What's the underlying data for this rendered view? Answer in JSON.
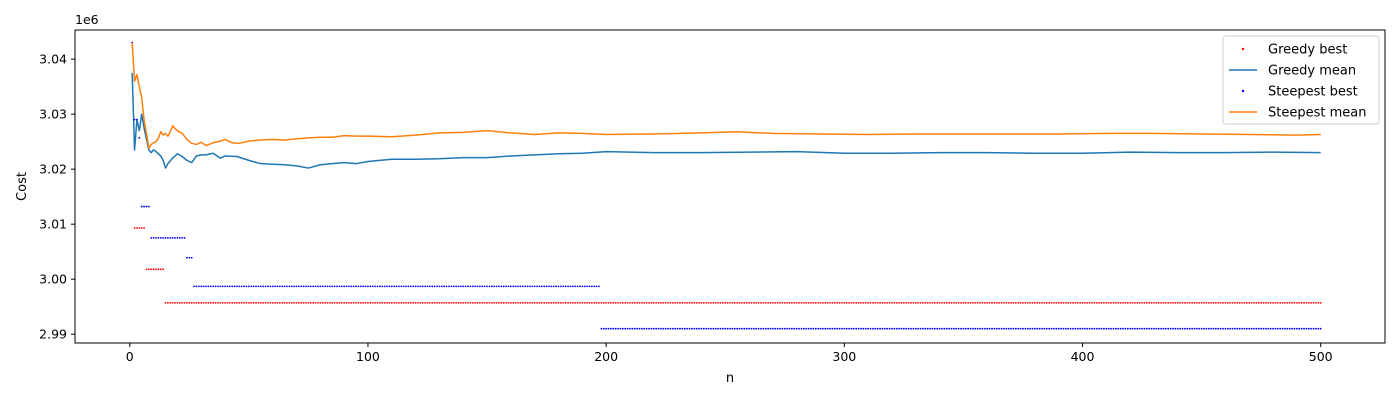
{
  "chart_data": {
    "type": "line",
    "title": "",
    "xlabel": "n",
    "ylabel": "Cost",
    "y_offset_label": "1e6",
    "y_scale": 1000000,
    "xlim": [
      -23,
      527
    ],
    "ylim": [
      2988400,
      3045300
    ],
    "x_ticks": [
      0,
      100,
      200,
      300,
      400,
      500
    ],
    "y_ticks": [
      2990000,
      3000000,
      3010000,
      3020000,
      3030000,
      3040000
    ],
    "y_tick_labels": [
      "2.99",
      "3.00",
      "3.01",
      "3.02",
      "3.03",
      "3.04"
    ],
    "grid": false,
    "legend_position": "top-right",
    "x_range": [
      1,
      500
    ],
    "series": [
      {
        "name": "Greedy best",
        "kind": "step-points",
        "color": "#ff0000",
        "steps": [
          {
            "from": 1,
            "to": 1,
            "y": 3043000
          },
          {
            "from": 2,
            "to": 6,
            "y": 3009300
          },
          {
            "from": 7,
            "to": 14,
            "y": 3001800
          },
          {
            "from": 15,
            "to": 500,
            "y": 2995700
          }
        ]
      },
      {
        "name": "Greedy mean",
        "kind": "line",
        "color": "#1f77b4",
        "points": [
          [
            1,
            3037500
          ],
          [
            2,
            3023500
          ],
          [
            3,
            3029000
          ],
          [
            4,
            3027000
          ],
          [
            5,
            3030000
          ],
          [
            6,
            3027500
          ],
          [
            7,
            3025500
          ],
          [
            8,
            3023500
          ],
          [
            9,
            3023000
          ],
          [
            10,
            3023500
          ],
          [
            11,
            3023200
          ],
          [
            12,
            3022800
          ],
          [
            13,
            3022400
          ],
          [
            14,
            3021600
          ],
          [
            15,
            3020200
          ],
          [
            16,
            3021000
          ],
          [
            18,
            3022000
          ],
          [
            20,
            3022800
          ],
          [
            22,
            3022300
          ],
          [
            24,
            3021600
          ],
          [
            26,
            3021200
          ],
          [
            28,
            3022400
          ],
          [
            30,
            3022600
          ],
          [
            32,
            3022600
          ],
          [
            35,
            3022900
          ],
          [
            38,
            3022000
          ],
          [
            40,
            3022400
          ],
          [
            45,
            3022300
          ],
          [
            50,
            3021600
          ],
          [
            55,
            3021000
          ],
          [
            60,
            3020900
          ],
          [
            65,
            3020800
          ],
          [
            70,
            3020600
          ],
          [
            75,
            3020200
          ],
          [
            80,
            3020800
          ],
          [
            85,
            3021000
          ],
          [
            90,
            3021200
          ],
          [
            95,
            3021000
          ],
          [
            100,
            3021400
          ],
          [
            110,
            3021800
          ],
          [
            120,
            3021800
          ],
          [
            130,
            3021900
          ],
          [
            140,
            3022100
          ],
          [
            150,
            3022100
          ],
          [
            160,
            3022400
          ],
          [
            170,
            3022600
          ],
          [
            180,
            3022800
          ],
          [
            190,
            3022900
          ],
          [
            200,
            3023200
          ],
          [
            220,
            3023000
          ],
          [
            240,
            3023000
          ],
          [
            260,
            3023100
          ],
          [
            280,
            3023200
          ],
          [
            300,
            3022900
          ],
          [
            320,
            3022900
          ],
          [
            340,
            3023000
          ],
          [
            360,
            3023000
          ],
          [
            380,
            3022900
          ],
          [
            400,
            3022900
          ],
          [
            420,
            3023100
          ],
          [
            440,
            3023000
          ],
          [
            460,
            3023000
          ],
          [
            480,
            3023100
          ],
          [
            500,
            3023000
          ]
        ]
      },
      {
        "name": "Steepest best",
        "kind": "step-points",
        "color": "#0000ff",
        "steps": [
          {
            "from": 1,
            "to": 1,
            "y": 3043000
          },
          {
            "from": 2,
            "to": 2,
            "y": 3029000
          },
          {
            "from": 3,
            "to": 3,
            "y": 3029000
          },
          {
            "from": 4,
            "to": 4,
            "y": 3025700
          },
          {
            "from": 5,
            "to": 8,
            "y": 3013200
          },
          {
            "from": 9,
            "to": 23,
            "y": 3007500
          },
          {
            "from": 24,
            "to": 26,
            "y": 3003900
          },
          {
            "from": 27,
            "to": 197,
            "y": 2998700
          },
          {
            "from": 198,
            "to": 500,
            "y": 2991000
          }
        ]
      },
      {
        "name": "Steepest mean",
        "kind": "line",
        "color": "#ff7f0e",
        "points": [
          [
            1,
            3043000
          ],
          [
            2,
            3036000
          ],
          [
            3,
            3037200
          ],
          [
            4,
            3035000
          ],
          [
            5,
            3033000
          ],
          [
            6,
            3029000
          ],
          [
            7,
            3026500
          ],
          [
            8,
            3023800
          ],
          [
            9,
            3024500
          ],
          [
            10,
            3024800
          ],
          [
            11,
            3025000
          ],
          [
            12,
            3025600
          ],
          [
            13,
            3026800
          ],
          [
            14,
            3026200
          ],
          [
            15,
            3026500
          ],
          [
            16,
            3026000
          ],
          [
            17,
            3026800
          ],
          [
            18,
            3027900
          ],
          [
            19,
            3027400
          ],
          [
            20,
            3027000
          ],
          [
            22,
            3026500
          ],
          [
            24,
            3025400
          ],
          [
            26,
            3024700
          ],
          [
            28,
            3024500
          ],
          [
            30,
            3024900
          ],
          [
            32,
            3024300
          ],
          [
            35,
            3024800
          ],
          [
            38,
            3025100
          ],
          [
            40,
            3025400
          ],
          [
            43,
            3024800
          ],
          [
            46,
            3024700
          ],
          [
            50,
            3025100
          ],
          [
            55,
            3025300
          ],
          [
            60,
            3025400
          ],
          [
            65,
            3025300
          ],
          [
            70,
            3025500
          ],
          [
            75,
            3025700
          ],
          [
            80,
            3025800
          ],
          [
            85,
            3025800
          ],
          [
            90,
            3026100
          ],
          [
            95,
            3026000
          ],
          [
            100,
            3026000
          ],
          [
            110,
            3025900
          ],
          [
            120,
            3026200
          ],
          [
            130,
            3026600
          ],
          [
            140,
            3026700
          ],
          [
            150,
            3027000
          ],
          [
            160,
            3026600
          ],
          [
            170,
            3026300
          ],
          [
            180,
            3026600
          ],
          [
            190,
            3026500
          ],
          [
            200,
            3026300
          ],
          [
            220,
            3026400
          ],
          [
            240,
            3026600
          ],
          [
            255,
            3026800
          ],
          [
            270,
            3026500
          ],
          [
            290,
            3026400
          ],
          [
            310,
            3026300
          ],
          [
            330,
            3026400
          ],
          [
            350,
            3026400
          ],
          [
            370,
            3026400
          ],
          [
            390,
            3026400
          ],
          [
            410,
            3026500
          ],
          [
            430,
            3026500
          ],
          [
            450,
            3026400
          ],
          [
            470,
            3026300
          ],
          [
            490,
            3026200
          ],
          [
            500,
            3026300
          ]
        ]
      }
    ]
  }
}
